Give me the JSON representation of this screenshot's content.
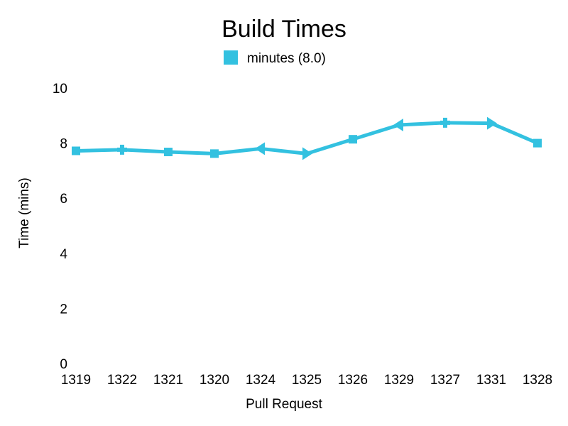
{
  "chart_data": {
    "type": "line",
    "title": "Build Times",
    "xlabel": "Pull Request",
    "ylabel": "Time (mins)",
    "categories": [
      "1319",
      "1322",
      "1321",
      "1320",
      "1324",
      "1325",
      "1326",
      "1329",
      "1327",
      "1331",
      "1328"
    ],
    "series": [
      {
        "name": "minutes (8.0)",
        "color": "#33C1E0",
        "values": [
          7.72,
          7.76,
          7.68,
          7.62,
          7.8,
          7.62,
          8.14,
          8.66,
          8.74,
          8.72,
          8.0
        ]
      }
    ],
    "ylim": [
      0,
      10
    ],
    "yticks": [
      "0",
      "2",
      "4",
      "6",
      "8",
      "10"
    ],
    "grid": false,
    "legend_position": "top-center"
  }
}
